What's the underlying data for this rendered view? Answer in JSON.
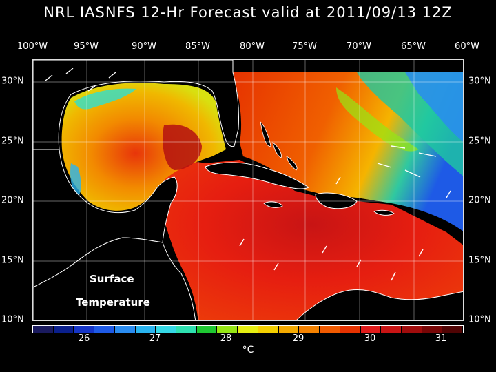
{
  "title": "NRL IASNFS  12-Hr Forecast valid at 2011/09/13 12Z",
  "lon_ticks": [
    "100°W",
    "95°W",
    "90°W",
    "85°W",
    "80°W",
    "75°W",
    "70°W",
    "65°W",
    "60°W"
  ],
  "lat_ticks": [
    "30°N",
    "25°N",
    "20°N",
    "15°N",
    "10°N"
  ],
  "overlay": {
    "line1": "Surface",
    "line2": "Temperature"
  },
  "colorbar": {
    "colors": [
      "#1a1a5e",
      "#0a1f8c",
      "#1535c8",
      "#1e5ae6",
      "#2a8cf0",
      "#29b4f0",
      "#35d8e6",
      "#2ee0b0",
      "#1ec832",
      "#96e614",
      "#e6ef12",
      "#f5d000",
      "#f5aa00",
      "#f58200",
      "#f05a00",
      "#e63200",
      "#e01b1b",
      "#c81414",
      "#a00c0c",
      "#780606",
      "#500404"
    ],
    "tick_labels": [
      "26",
      "27",
      "28",
      "29",
      "30",
      "31"
    ],
    "unit": "°C"
  }
}
